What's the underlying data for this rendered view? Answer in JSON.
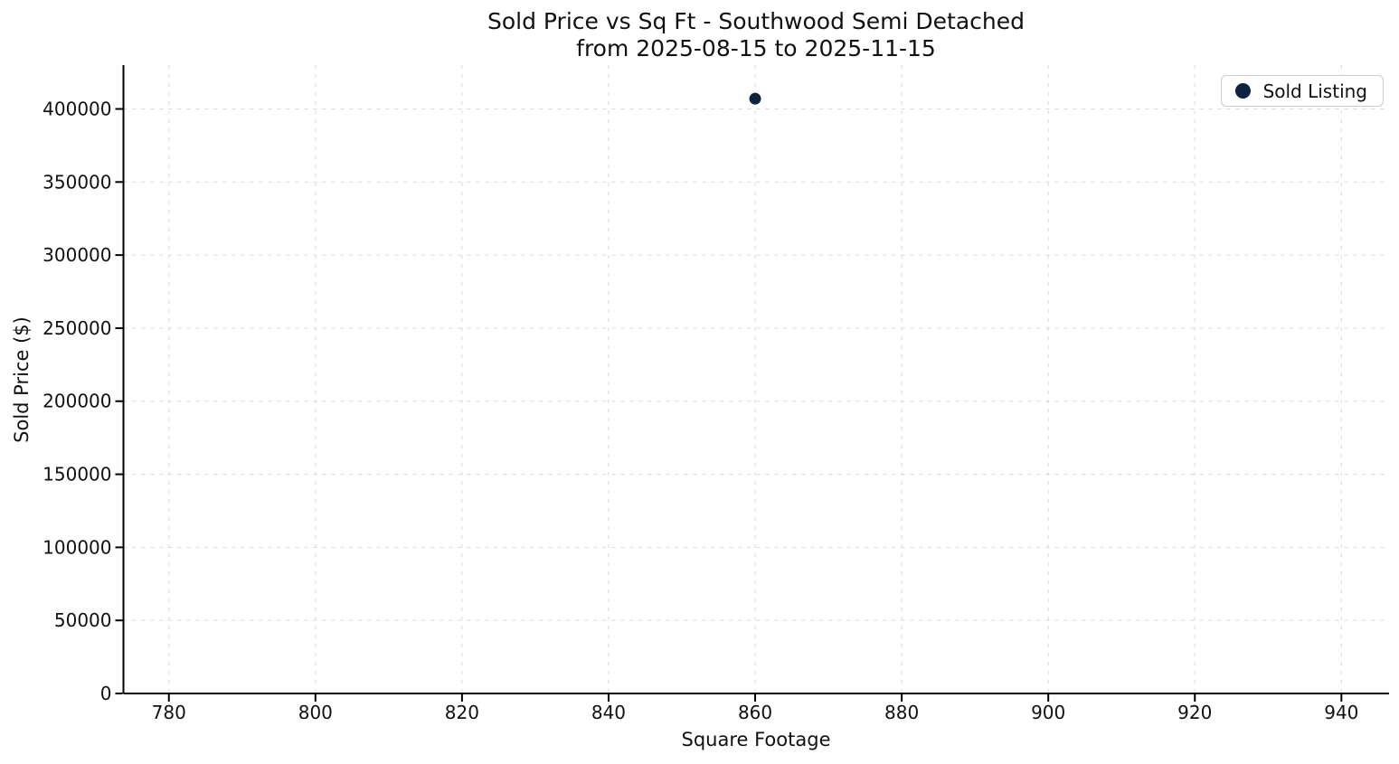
{
  "chart_data": {
    "type": "scatter",
    "title_lines": [
      "Sold Price vs Sq Ft - Southwood Semi Detached",
      "from 2025-08-15 to 2025-11-15"
    ],
    "xlabel": "Square Footage",
    "ylabel": "Sold Price ($)",
    "xlim": [
      773.8,
      946.5
    ],
    "ylim": [
      0,
      430000
    ],
    "xticks": [
      780,
      800,
      820,
      840,
      860,
      880,
      900,
      920,
      940
    ],
    "yticks": [
      0,
      50000,
      100000,
      150000,
      200000,
      250000,
      300000,
      350000,
      400000
    ],
    "grid": true,
    "grid_style": "dashed",
    "background_color": "#ffffff",
    "legend": {
      "position": "upper right",
      "entries": [
        {
          "label": "Sold Listing",
          "marker": "circle",
          "marker_color": "#0d2440"
        }
      ]
    },
    "series": [
      {
        "name": "Sold Listing",
        "color": "#0d2440",
        "points": [
          {
            "x": 860,
            "y": 407000
          }
        ]
      }
    ]
  }
}
